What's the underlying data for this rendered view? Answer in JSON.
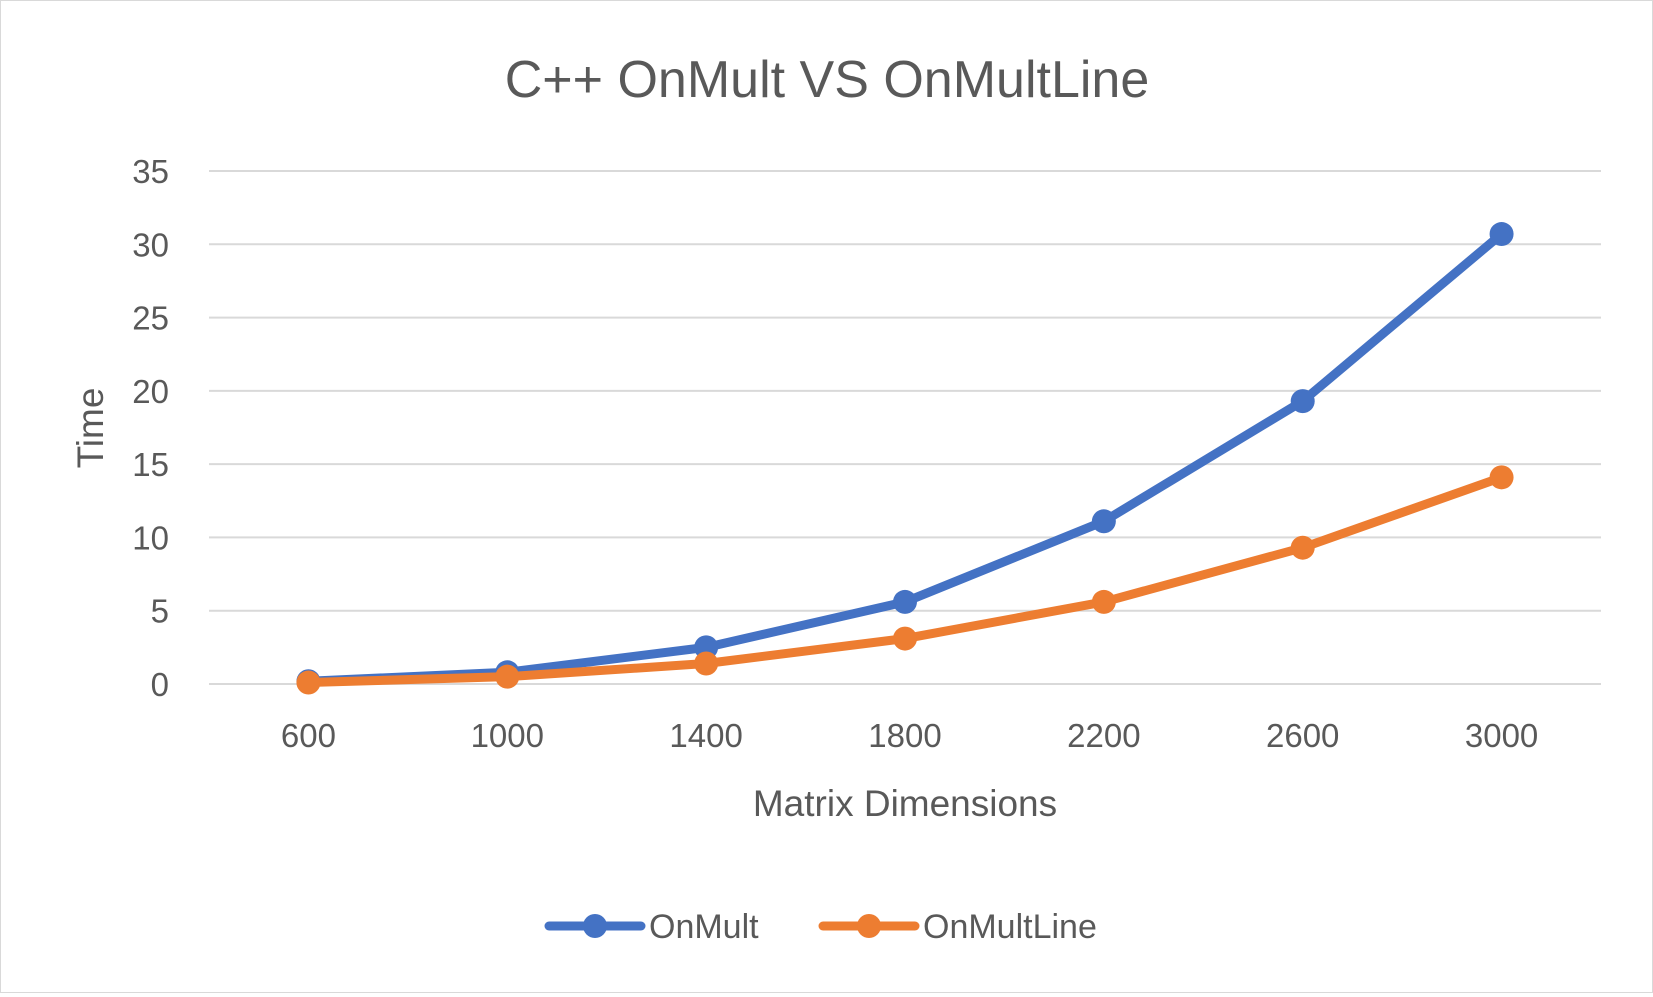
{
  "chart_data": {
    "type": "line",
    "title": "C++ OnMult VS OnMultLine",
    "xlabel": "Matrix Dimensions",
    "ylabel": "Time",
    "categories": [
      "600",
      "1000",
      "1400",
      "1800",
      "2200",
      "2600",
      "3000"
    ],
    "yticks": [
      "0",
      "5",
      "10",
      "15",
      "20",
      "25",
      "30",
      "35"
    ],
    "ylim": [
      0,
      35
    ],
    "grid": true,
    "legend_position": "bottom",
    "series": [
      {
        "name": "OnMult",
        "color": "#4472c4",
        "values": [
          0.19,
          0.8,
          2.5,
          5.6,
          11.1,
          19.3,
          30.7
        ]
      },
      {
        "name": "OnMultLine",
        "color": "#ed7d31",
        "values": [
          0.1,
          0.5,
          1.4,
          3.1,
          5.6,
          9.3,
          14.1
        ]
      }
    ]
  }
}
